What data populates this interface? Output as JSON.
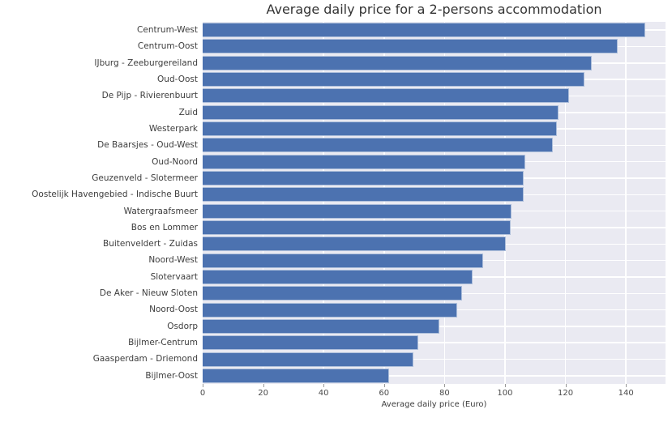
{
  "title": "Average daily price for a 2-persons accommodation",
  "chart_data": {
    "type": "bar",
    "orientation": "horizontal",
    "title": "Average daily price for a 2-persons accommodation",
    "xlabel": "Average daily price (Euro)",
    "ylabel": "",
    "xlim": [
      0,
      153.1
    ],
    "x_ticks": [
      0,
      20,
      40,
      60,
      80,
      100,
      120,
      140
    ],
    "grid": true,
    "legend": "none",
    "categories": [
      "Centrum-West",
      "Centrum-Oost",
      "IJburg - Zeeburgereiland",
      "Oud-Oost",
      "De Pijp - Rivierenbuurt",
      "Zuid",
      "Westerpark",
      "De Baarsjes - Oud-West",
      "Oud-Noord",
      "Geuzenveld - Slotermeer",
      "Oostelijk Havengebied - Indische Buurt",
      "Watergraafsmeer",
      "Bos en Lommer",
      "Buitenveldert - Zuidas",
      "Noord-West",
      "Slotervaart",
      "De Aker - Nieuw Sloten",
      "Noord-Oost",
      "Osdorp",
      "Bijlmer-Centrum",
      "Gaasperdam - Driemond",
      "Bijlmer-Oost"
    ],
    "values": [
      146,
      137,
      128.5,
      126,
      121,
      117.5,
      117,
      115.5,
      106.5,
      106,
      106,
      102,
      101.5,
      100,
      92.5,
      89,
      85.5,
      84,
      78,
      71,
      69.5,
      61.5
    ],
    "colors": {
      "bar": "#4c72b0",
      "plot_background": "#eaeaf2",
      "grid": "#ffffff",
      "title_text": "#333333",
      "tick_text": "#4a4a4a",
      "label_text": "#3d3d3d"
    }
  }
}
